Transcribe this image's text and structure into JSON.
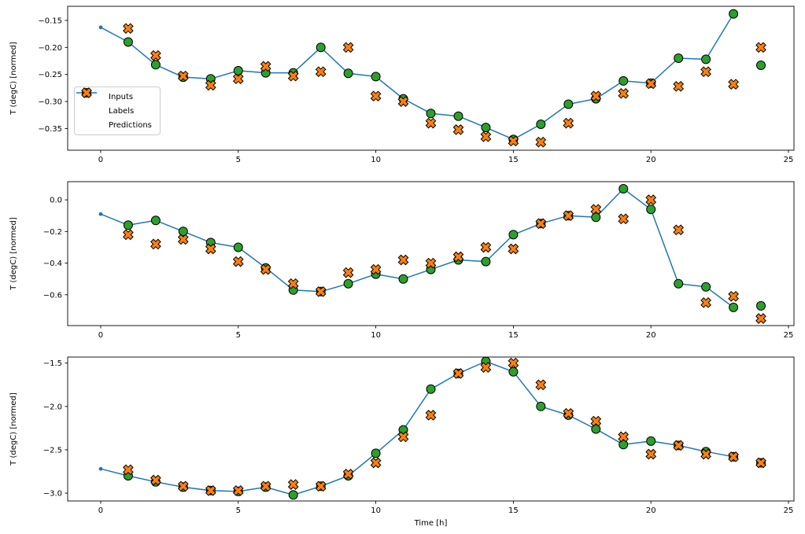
{
  "figure": {
    "background": "#ffffff"
  },
  "colors": {
    "inputs": "#1f77b4",
    "labels": "#2ca02c",
    "predictions": "#ff7f0e",
    "marker_edge": "#000000",
    "axis": "#000000"
  },
  "legend": {
    "items": [
      {
        "label": "Inputs"
      },
      {
        "label": "Labels"
      },
      {
        "label": "Predictions"
      }
    ]
  },
  "chart_data": [
    {
      "type": "line",
      "title": "",
      "xlabel": "",
      "ylabel": "T (degC) [normed]",
      "xlim": [
        -1.2,
        25.2
      ],
      "ylim": [
        -0.39,
        -0.124
      ],
      "xticks": [
        0,
        5,
        10,
        15,
        20,
        25
      ],
      "yticks": [
        -0.15,
        -0.2,
        -0.25,
        -0.3,
        -0.35
      ],
      "ytick_decimals": 2,
      "xtick_decimals": 0,
      "series": [
        {
          "name": "Inputs",
          "style": "line-dot",
          "x": [
            0,
            1,
            2,
            3,
            4,
            5,
            6,
            7,
            8,
            9,
            10,
            11,
            12,
            13,
            14,
            15,
            16,
            17,
            18,
            19,
            20,
            21,
            22,
            23
          ],
          "values": [
            -0.163,
            -0.19,
            -0.232,
            -0.255,
            -0.258,
            -0.243,
            -0.247,
            -0.247,
            -0.2,
            -0.248,
            -0.254,
            -0.295,
            -0.322,
            -0.327,
            -0.348,
            -0.37,
            -0.342,
            -0.305,
            -0.295,
            -0.262,
            -0.266,
            -0.22,
            -0.222,
            -0.138
          ]
        },
        {
          "name": "Labels",
          "style": "scatter-circle",
          "x": [
            1,
            2,
            3,
            4,
            5,
            6,
            7,
            8,
            9,
            10,
            11,
            12,
            13,
            14,
            15,
            16,
            17,
            18,
            19,
            20,
            21,
            22,
            23,
            24
          ],
          "values": [
            -0.19,
            -0.232,
            -0.255,
            -0.258,
            -0.243,
            -0.247,
            -0.247,
            -0.2,
            -0.248,
            -0.254,
            -0.295,
            -0.322,
            -0.327,
            -0.348,
            -0.37,
            -0.342,
            -0.305,
            -0.295,
            -0.262,
            -0.266,
            -0.22,
            -0.222,
            -0.138,
            -0.233
          ]
        },
        {
          "name": "Predictions",
          "style": "scatter-x",
          "x": [
            1,
            2,
            3,
            4,
            5,
            6,
            7,
            8,
            9,
            10,
            11,
            12,
            13,
            14,
            15,
            16,
            17,
            18,
            19,
            20,
            21,
            22,
            23,
            24
          ],
          "values": [
            -0.165,
            -0.215,
            -0.253,
            -0.27,
            -0.258,
            -0.235,
            -0.253,
            -0.245,
            -0.2,
            -0.29,
            -0.3,
            -0.34,
            -0.352,
            -0.365,
            -0.373,
            -0.375,
            -0.34,
            -0.29,
            -0.285,
            -0.267,
            -0.272,
            -0.245,
            -0.268,
            -0.2
          ]
        }
      ]
    },
    {
      "type": "line",
      "title": "",
      "xlabel": "",
      "ylabel": "T (degC) [normed]",
      "xlim": [
        -1.2,
        25.2
      ],
      "ylim": [
        -0.795,
        0.115
      ],
      "xticks": [
        0,
        5,
        10,
        15,
        20,
        25
      ],
      "yticks": [
        0.0,
        -0.2,
        -0.4,
        -0.6
      ],
      "ytick_decimals": 1,
      "xtick_decimals": 0,
      "series": [
        {
          "name": "Inputs",
          "style": "line-dot",
          "x": [
            0,
            1,
            2,
            3,
            4,
            5,
            6,
            7,
            8,
            9,
            10,
            11,
            12,
            13,
            14,
            15,
            16,
            17,
            18,
            19,
            20,
            21,
            22,
            23
          ],
          "values": [
            -0.09,
            -0.16,
            -0.13,
            -0.2,
            -0.27,
            -0.3,
            -0.43,
            -0.57,
            -0.58,
            -0.53,
            -0.47,
            -0.5,
            -0.44,
            -0.38,
            -0.39,
            -0.22,
            -0.15,
            -0.1,
            -0.11,
            0.07,
            -0.06,
            -0.53,
            -0.55,
            -0.68
          ]
        },
        {
          "name": "Labels",
          "style": "scatter-circle",
          "x": [
            1,
            2,
            3,
            4,
            5,
            6,
            7,
            8,
            9,
            10,
            11,
            12,
            13,
            14,
            15,
            16,
            17,
            18,
            19,
            20,
            21,
            22,
            23,
            24
          ],
          "values": [
            -0.16,
            -0.13,
            -0.2,
            -0.27,
            -0.3,
            -0.43,
            -0.57,
            -0.58,
            -0.53,
            -0.47,
            -0.5,
            -0.44,
            -0.38,
            -0.39,
            -0.22,
            -0.15,
            -0.1,
            -0.11,
            0.07,
            -0.06,
            -0.53,
            -0.55,
            -0.68,
            -0.67
          ]
        },
        {
          "name": "Predictions",
          "style": "scatter-x",
          "x": [
            1,
            2,
            3,
            4,
            5,
            6,
            7,
            8,
            9,
            10,
            11,
            12,
            13,
            14,
            15,
            16,
            17,
            18,
            19,
            20,
            21,
            22,
            23,
            24
          ],
          "values": [
            -0.22,
            -0.28,
            -0.25,
            -0.31,
            -0.39,
            -0.44,
            -0.53,
            -0.58,
            -0.46,
            -0.44,
            -0.38,
            -0.4,
            -0.36,
            -0.3,
            -0.31,
            -0.15,
            -0.1,
            -0.06,
            -0.12,
            0.0,
            -0.19,
            -0.65,
            -0.61,
            -0.75
          ]
        }
      ]
    },
    {
      "type": "line",
      "title": "",
      "xlabel": "Time [h]",
      "ylabel": "T (degC) [normed]",
      "xlim": [
        -1.2,
        25.2
      ],
      "ylim": [
        -3.09,
        -1.43
      ],
      "xticks": [
        0,
        5,
        10,
        15,
        20,
        25
      ],
      "yticks": [
        -1.5,
        -2.0,
        -2.5,
        -3.0
      ],
      "ytick_decimals": 1,
      "xtick_decimals": 0,
      "series": [
        {
          "name": "Inputs",
          "style": "line-dot",
          "x": [
            0,
            1,
            2,
            3,
            4,
            5,
            6,
            7,
            8,
            9,
            10,
            11,
            12,
            13,
            14,
            15,
            16,
            17,
            18,
            19,
            20,
            21,
            22,
            23
          ],
          "values": [
            -2.72,
            -2.8,
            -2.87,
            -2.93,
            -2.97,
            -2.98,
            -2.93,
            -3.02,
            -2.92,
            -2.8,
            -2.54,
            -2.27,
            -1.8,
            -1.62,
            -1.48,
            -1.6,
            -2.0,
            -2.1,
            -2.26,
            -2.44,
            -2.4,
            -2.45,
            -2.52,
            -2.58
          ]
        },
        {
          "name": "Labels",
          "style": "scatter-circle",
          "x": [
            1,
            2,
            3,
            4,
            5,
            6,
            7,
            8,
            9,
            10,
            11,
            12,
            13,
            14,
            15,
            16,
            17,
            18,
            19,
            20,
            21,
            22,
            23,
            24
          ],
          "values": [
            -2.8,
            -2.87,
            -2.93,
            -2.97,
            -2.98,
            -2.93,
            -3.02,
            -2.92,
            -2.8,
            -2.54,
            -2.27,
            -1.8,
            -1.62,
            -1.48,
            -1.6,
            -2.0,
            -2.1,
            -2.26,
            -2.44,
            -2.4,
            -2.45,
            -2.52,
            -2.58,
            -2.65
          ]
        },
        {
          "name": "Predictions",
          "style": "scatter-x",
          "x": [
            1,
            2,
            3,
            4,
            5,
            6,
            7,
            8,
            9,
            10,
            11,
            12,
            13,
            14,
            15,
            16,
            17,
            18,
            19,
            20,
            21,
            22,
            23,
            24
          ],
          "values": [
            -2.73,
            -2.85,
            -2.92,
            -2.97,
            -2.97,
            -2.92,
            -2.9,
            -2.92,
            -2.78,
            -2.65,
            -2.35,
            -2.1,
            -1.62,
            -1.55,
            -1.5,
            -1.75,
            -2.08,
            -2.17,
            -2.35,
            -2.55,
            -2.45,
            -2.55,
            -2.58,
            -2.65
          ]
        }
      ]
    }
  ]
}
